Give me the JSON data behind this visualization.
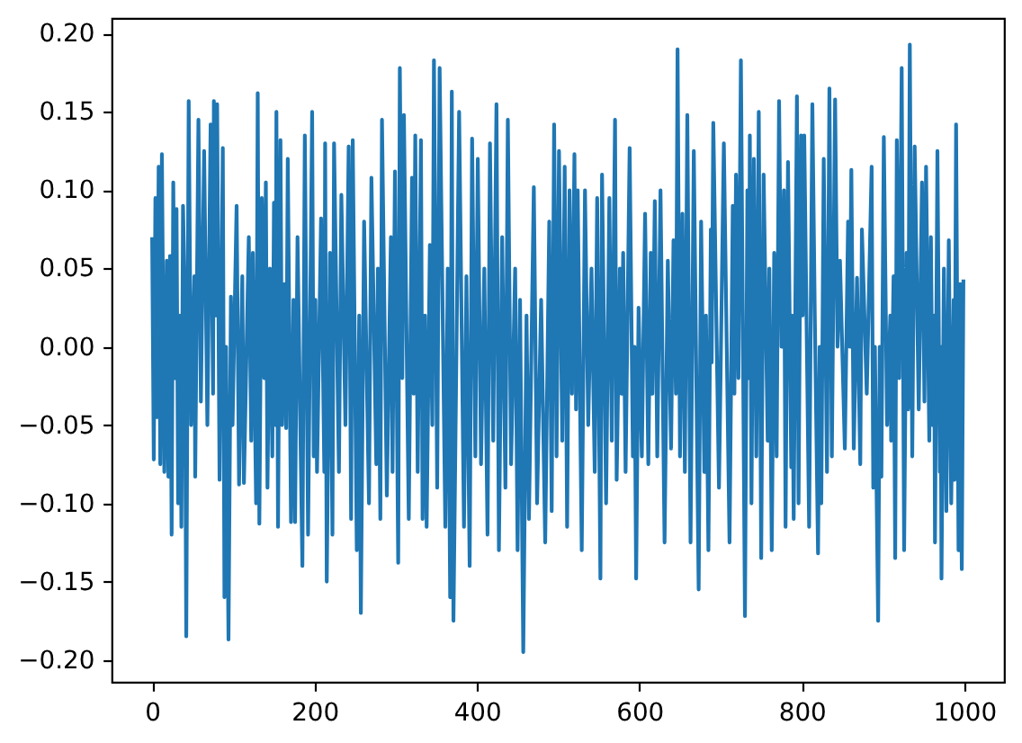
{
  "chart_data": {
    "type": "line",
    "x": [
      0,
      2,
      4,
      6,
      8,
      10,
      12,
      15,
      18,
      20,
      22,
      24,
      26,
      28,
      30,
      32,
      34,
      36,
      38,
      40,
      42,
      45,
      48,
      52,
      53,
      57,
      60,
      64,
      68,
      72,
      75,
      76,
      78,
      80,
      83,
      87,
      89,
      91,
      94,
      97,
      99,
      104,
      107,
      111,
      113,
      119,
      122,
      124,
      128,
      130,
      132,
      135,
      138,
      140,
      142,
      145,
      148,
      150,
      152,
      153,
      155,
      158,
      160,
      163,
      165,
      167,
      171,
      174,
      176,
      179,
      185,
      188,
      192,
      197,
      199,
      201,
      203,
      208,
      212,
      213,
      215,
      219,
      222,
      224,
      230,
      233,
      238,
      242,
      245,
      247,
      252,
      255,
      257,
      261,
      267,
      270,
      276,
      278,
      281,
      283,
      289,
      294,
      296,
      299,
      303,
      305,
      308,
      310,
      316,
      320,
      322,
      324,
      327,
      331,
      333,
      336,
      338,
      342,
      345,
      347,
      351,
      354,
      361,
      364,
      367,
      369,
      371,
      378,
      384,
      387,
      391,
      394,
      398,
      401,
      405,
      409,
      413,
      416,
      420,
      424,
      427,
      431,
      435,
      438,
      442,
      447,
      450,
      453,
      457,
      461,
      464,
      470,
      474,
      479,
      484,
      489,
      492,
      495,
      498,
      501,
      505,
      508,
      511,
      514,
      517,
      520,
      522,
      524,
      529,
      533,
      537,
      541,
      545,
      548,
      552,
      554,
      559,
      563,
      566,
      570,
      572,
      576,
      578,
      580,
      583,
      588,
      592,
      594,
      596,
      599,
      603,
      607,
      611,
      614,
      616,
      619,
      622,
      626,
      631,
      635,
      639,
      642,
      645,
      647,
      650,
      653,
      656,
      659,
      663,
      667,
      673,
      676,
      680,
      682,
      685,
      688,
      689,
      691,
      698,
      704,
      711,
      715,
      717,
      719,
      722,
      725,
      730,
      733,
      735,
      736,
      738,
      741,
      744,
      747,
      750,
      753,
      758,
      760,
      763,
      766,
      769,
      772,
      775,
      778,
      780,
      783,
      787,
      788,
      790,
      794,
      796,
      799,
      801,
      803,
      809,
      813,
      816,
      820,
      822,
      824,
      827,
      831,
      834,
      837,
      841,
      844,
      847,
      853,
      857,
      859,
      861,
      864,
      868,
      872,
      874,
      880,
      886,
      888,
      890,
      894,
      896,
      898,
      901,
      905,
      909,
      910,
      913,
      915,
      917,
      920,
      923,
      926,
      929,
      931,
      933,
      936,
      939,
      944,
      948,
      951,
      953,
      957,
      959,
      961,
      963,
      964,
      967,
      970,
      971,
      972,
      975,
      978,
      981,
      984,
      987,
      988,
      990,
      993,
      995,
      997,
      999
    ],
    "series": [
      {
        "color": "#1f77b4",
        "values": [
          0.07,
          -0.072,
          0.095,
          -0.045,
          0.115,
          -0.075,
          0.123,
          -0.08,
          0.055,
          -0.083,
          0.058,
          -0.12,
          0.105,
          -0.02,
          0.088,
          -0.1,
          0.02,
          -0.115,
          0.09,
          0.035,
          -0.185,
          0.157,
          -0.05,
          0.045,
          -0.083,
          0.145,
          -0.035,
          0.125,
          -0.05,
          0.142,
          -0.03,
          0.157,
          0.02,
          0.155,
          -0.085,
          0.127,
          -0.16,
          0.0,
          -0.187,
          0.032,
          -0.05,
          0.09,
          -0.088,
          0.045,
          -0.087,
          0.07,
          -0.06,
          0.06,
          -0.1,
          0.162,
          -0.113,
          0.095,
          -0.02,
          0.105,
          -0.09,
          0.05,
          -0.07,
          0.092,
          -0.05,
          0.15,
          -0.115,
          0.132,
          -0.05,
          0.04,
          -0.052,
          0.12,
          -0.112,
          0.03,
          -0.112,
          0.07,
          -0.14,
          0.135,
          -0.12,
          0.15,
          -0.07,
          0.03,
          -0.08,
          0.082,
          -0.08,
          0.13,
          -0.15,
          0.06,
          -0.12,
          0.13,
          -0.08,
          0.097,
          -0.05,
          0.128,
          -0.11,
          0.132,
          -0.13,
          0.02,
          -0.17,
          0.08,
          -0.1,
          0.108,
          -0.075,
          0.05,
          -0.11,
          0.145,
          -0.095,
          0.07,
          -0.08,
          0.112,
          -0.138,
          0.178,
          -0.02,
          0.148,
          -0.11,
          0.108,
          -0.03,
          0.135,
          -0.08,
          0.132,
          -0.11,
          0.02,
          -0.115,
          0.065,
          -0.05,
          0.183,
          -0.09,
          0.178,
          -0.115,
          0.05,
          -0.16,
          0.163,
          -0.175,
          0.15,
          -0.115,
          0.045,
          -0.14,
          0.133,
          -0.07,
          0.12,
          -0.075,
          0.05,
          -0.12,
          0.13,
          -0.06,
          0.155,
          -0.13,
          0.07,
          -0.09,
          0.145,
          -0.075,
          0.05,
          -0.13,
          0.03,
          -0.195,
          0.02,
          -0.11,
          0.102,
          -0.1,
          0.03,
          -0.125,
          0.08,
          -0.105,
          0.142,
          -0.07,
          0.125,
          -0.06,
          0.115,
          -0.115,
          0.1,
          -0.03,
          0.123,
          -0.04,
          0.1,
          -0.13,
          0.1,
          -0.05,
          0.05,
          -0.08,
          0.095,
          -0.148,
          0.11,
          -0.1,
          0.095,
          -0.06,
          0.145,
          -0.085,
          0.05,
          -0.03,
          0.06,
          -0.08,
          0.127,
          -0.07,
          0.0,
          -0.148,
          0.025,
          -0.07,
          0.085,
          -0.075,
          0.06,
          -0.03,
          0.093,
          -0.07,
          0.1,
          -0.125,
          0.055,
          -0.065,
          0.068,
          -0.03,
          0.19,
          -0.07,
          0.085,
          -0.08,
          0.148,
          -0.125,
          0.125,
          -0.155,
          0.08,
          -0.08,
          0.02,
          -0.13,
          0.075,
          -0.01,
          0.143,
          -0.09,
          0.13,
          -0.125,
          0.09,
          -0.03,
          0.11,
          -0.02,
          0.183,
          -0.172,
          0.1,
          -0.02,
          0.135,
          -0.1,
          0.12,
          -0.07,
          0.15,
          -0.135,
          0.11,
          -0.06,
          0.05,
          -0.13,
          0.06,
          -0.07,
          0.157,
          0.0,
          0.1,
          -0.115,
          0.118,
          -0.077,
          0.02,
          -0.11,
          0.16,
          -0.1,
          0.135,
          0.02,
          0.135,
          -0.115,
          0.155,
          0.02,
          -0.132,
          0.0,
          -0.1,
          0.12,
          -0.08,
          0.165,
          -0.07,
          0.158,
          0.0,
          0.055,
          -0.065,
          0.08,
          0.0,
          0.113,
          -0.065,
          0.044,
          -0.075,
          0.075,
          -0.03,
          0.115,
          -0.09,
          0.0,
          -0.175,
          0.0,
          -0.083,
          0.134,
          -0.05,
          0.02,
          -0.06,
          0.045,
          -0.135,
          0.132,
          -0.02,
          0.178,
          -0.13,
          0.06,
          -0.04,
          0.193,
          -0.07,
          0.128,
          -0.04,
          0.105,
          -0.035,
          0.115,
          -0.06,
          0.07,
          -0.05,
          0.02,
          -0.125,
          0.125,
          -0.08,
          0.0,
          -0.148,
          0.05,
          -0.105,
          0.068,
          -0.1,
          0.03,
          -0.085,
          0.142,
          -0.13,
          0.04,
          -0.142,
          0.043
        ]
      }
    ],
    "xlim": [
      -50,
      1049
    ],
    "ylim": [
      -0.214,
      0.21
    ],
    "xticks": [
      0,
      200,
      400,
      600,
      800,
      1000
    ],
    "yticks": [
      {
        "value": -0.2,
        "label": "−0.20"
      },
      {
        "value": -0.15,
        "label": "−0.15"
      },
      {
        "value": -0.1,
        "label": "−0.10"
      },
      {
        "value": -0.05,
        "label": "−0.05"
      },
      {
        "value": 0,
        "label": "0.00"
      },
      {
        "value": 0.05,
        "label": "0.05"
      },
      {
        "value": 0.1,
        "label": "0.10"
      },
      {
        "value": 0.15,
        "label": "0.15"
      },
      {
        "value": 0.2,
        "label": "0.20"
      }
    ]
  }
}
